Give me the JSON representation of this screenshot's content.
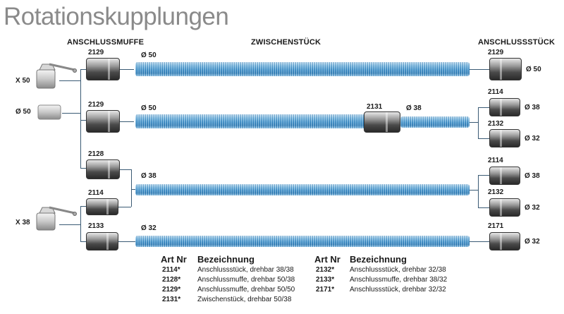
{
  "title": "Rotationskupplungen",
  "headers": {
    "left": "ANSCHLUSSMUFFE",
    "middle": "ZWISCHENSTÜCK",
    "right": "ANSCHLUSSSTÜCK"
  },
  "inputs": {
    "x50": "X 50",
    "d50": "Ø 50",
    "x38": "X 38"
  },
  "left_codes": {
    "r1": "2129",
    "r2": "2129",
    "r3": "2128",
    "r4": "2114",
    "r5": "2133"
  },
  "hose_labels": {
    "r1": "Ø 50",
    "r2": "Ø 50",
    "mid_code": "2131",
    "r2b": "Ø 38",
    "r3": "Ø 38",
    "r5": "Ø 32"
  },
  "right": {
    "a_code": "2129",
    "a_dia": "Ø 50",
    "b_code": "2114",
    "b_dia": "Ø 38",
    "c_code": "2132",
    "c_dia": "Ø 32",
    "d_code": "2114",
    "d_dia": "Ø 38",
    "e_code": "2132",
    "e_dia": "Ø 32",
    "f_code": "2171",
    "f_dia": "Ø 32"
  },
  "table": {
    "col_art": "Art Nr",
    "col_desc": "Bezeichnung",
    "left_rows": [
      {
        "art": "2114*",
        "desc": "Anschlussstück, drehbar 38/38"
      },
      {
        "art": "2128*",
        "desc": "Anschlussmuffe, drehbar 50/38"
      },
      {
        "art": "2129*",
        "desc": "Anschlussmuffe, drehbar 50/50"
      },
      {
        "art": "2131*",
        "desc": "Zwischenstück, drehbar 50/38"
      }
    ],
    "right_rows": [
      {
        "art": "2132*",
        "desc": "Anschlussstück, drehbar 32/38"
      },
      {
        "art": "2133*",
        "desc": "Anschlussmuffe, drehbar 38/32"
      },
      {
        "art": "2171*",
        "desc": "Anschlussstück, drehbar 32/32"
      }
    ]
  }
}
